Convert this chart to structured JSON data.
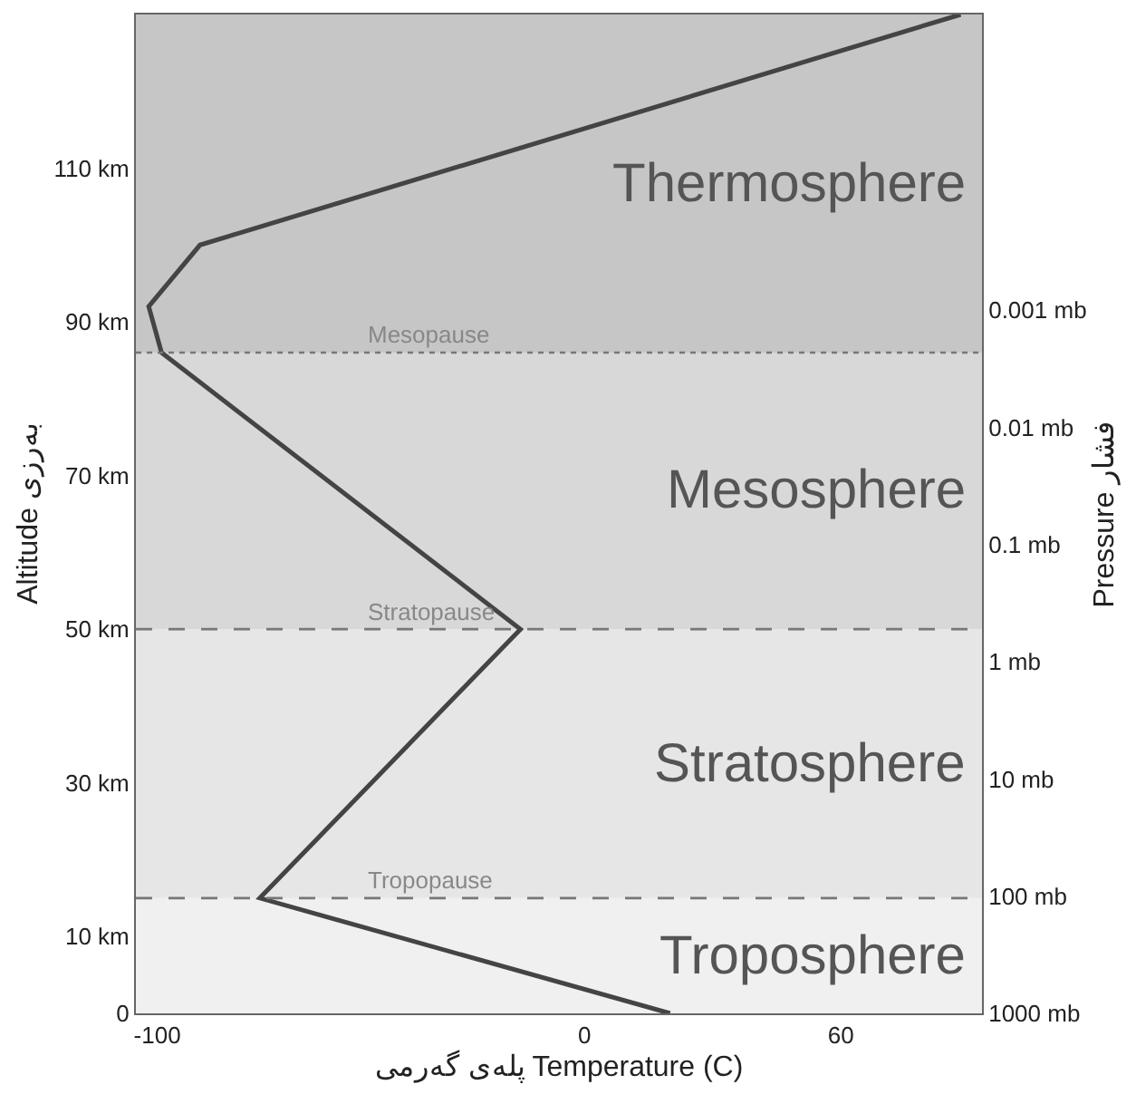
{
  "chart_data": {
    "type": "line",
    "xlabel": "پلەی گەرمی Temperature (C)",
    "ylabel": "Altitude بەرزی",
    "y2label": "Pressure فشار",
    "x": [
      20,
      -76,
      -15,
      -99,
      -102,
      -90,
      88
    ],
    "series": [
      {
        "color": "#444444",
        "values": [
          0,
          15,
          50,
          86,
          92,
          100,
          130
        ]
      }
    ],
    "xlim": [
      -105,
      93
    ],
    "xticks": [
      -100,
      0,
      60
    ],
    "ylim": [
      0,
      130
    ],
    "yticks": [
      {
        "value": 0,
        "label": "0"
      },
      {
        "value": 10,
        "label": "10 km"
      },
      {
        "value": 30,
        "label": "30 km"
      },
      {
        "value": 50,
        "label": "50 km"
      },
      {
        "value": 70,
        "label": "70 km"
      },
      {
        "value": 90,
        "label": "90 km"
      },
      {
        "value": 110,
        "label": "110 km"
      }
    ],
    "log": "y2",
    "y2lim": [
      1000,
      3e-06
    ],
    "y2ticks": [
      {
        "value": 1000,
        "label": "1000 mb"
      },
      {
        "value": 100,
        "label": "100 mb"
      },
      {
        "value": 10,
        "label": "10 mb"
      },
      {
        "value": 1,
        "label": "1 mb"
      },
      {
        "value": 0.1,
        "label": "0.1 mb"
      },
      {
        "value": 0.01,
        "label": "0.01 mb"
      },
      {
        "value": 0.001,
        "label": "0.001 mb"
      }
    ],
    "ref_lines": [
      {
        "axis": "y",
        "value": 15,
        "label": "Tropopause",
        "color": "#777777",
        "line_style": "dashed"
      },
      {
        "axis": "y",
        "value": 50,
        "label": "Stratopause",
        "color": "#777777",
        "line_style": "dashed"
      },
      {
        "axis": "y",
        "value": 86,
        "label": "Mesopause",
        "color": "#777777",
        "line_style": "dotted"
      }
    ],
    "bands": [
      {
        "axis": "y",
        "from": 0,
        "to": 15,
        "label": "Troposphere",
        "color": "#f0f0f0"
      },
      {
        "axis": "y",
        "from": 15,
        "to": 50,
        "label": "Stratosphere",
        "color": "#e6e6e6"
      },
      {
        "axis": "y",
        "from": 50,
        "to": 86,
        "label": "Mesosphere",
        "color": "#d8d8d8"
      },
      {
        "axis": "y",
        "from": 86,
        "to": 130,
        "label": "Thermosphere",
        "color": "#c6c6c6"
      }
    ],
    "grid": false,
    "marker": "none",
    "line_style": "solid"
  }
}
